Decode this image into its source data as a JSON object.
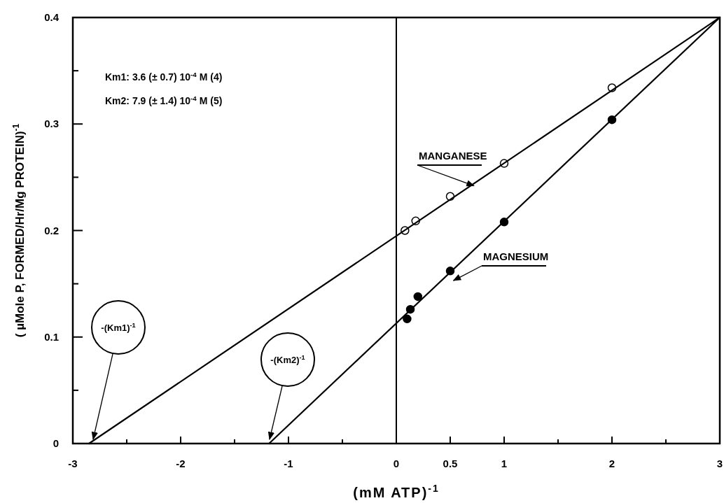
{
  "chart_data": {
    "type": "scatter",
    "xlabel": "(mM ATP)$^{-1}$",
    "ylabel": "( µMole P, FORMED/Hr/Mg PROTEIN)$^{-1}$",
    "xlim": [
      -3,
      3
    ],
    "ylim": [
      0,
      0.4
    ],
    "xticks": [
      -3,
      {
        "value": -2.5,
        "label": null
      },
      -2,
      {
        "value": -1.5,
        "label": null
      },
      -1,
      {
        "value": -0.5,
        "label": null
      },
      0,
      0.5,
      1,
      {
        "value": 1.5,
        "label": null
      },
      2,
      {
        "value": 2.5,
        "label": null
      },
      3
    ],
    "yticks": [
      0,
      {
        "value": 0.05,
        "label": null
      },
      0.1,
      {
        "value": 0.15,
        "label": null
      },
      0.2,
      {
        "value": 0.25,
        "label": null
      },
      0.3,
      {
        "value": 0.35,
        "label": null
      },
      0.4
    ],
    "grid": false,
    "series": [
      {
        "name": "MANGANESE",
        "marker": "circle",
        "color": "#000000",
        "x": [
          0.08,
          0.18,
          0.5,
          1,
          2
        ],
        "values": [
          0.2,
          0.209,
          0.232,
          0.263,
          0.334
        ]
      },
      {
        "name": "MAGNESIUM",
        "marker": "circle",
        "color": "#000000",
        "x": [
          0.1,
          0.13,
          0.2,
          0.5,
          1,
          2
        ],
        "values": [
          0.117,
          0.126,
          0.138,
          0.162,
          0.208,
          0.304
        ]
      },
      {
        "type": "line",
        "marker": "none",
        "line_style": "solid",
        "color": "#000000",
        "x": [
          -2.85,
          3
        ],
        "values": [
          0,
          0.4
        ]
      },
      {
        "type": "line",
        "marker": "none",
        "line_style": "solid",
        "color": "#000000",
        "x": [
          -1.18,
          3
        ],
        "values": [
          0,
          0.4
        ]
      }
    ],
    "ref_lines": [
      {
        "axis": "x",
        "value": 0,
        "label": null,
        "color": "#000000"
      }
    ],
    "annotations": [
      "Km1:  3.6 (± 0.7) 10$^{-4}$ M  (4)",
      "Km2:  7.9 (± 1.4) 10$^{-4}$ M  (5)",
      "-(Km1)$^{-1}$",
      "-(Km2)$^{-1}$"
    ]
  }
}
